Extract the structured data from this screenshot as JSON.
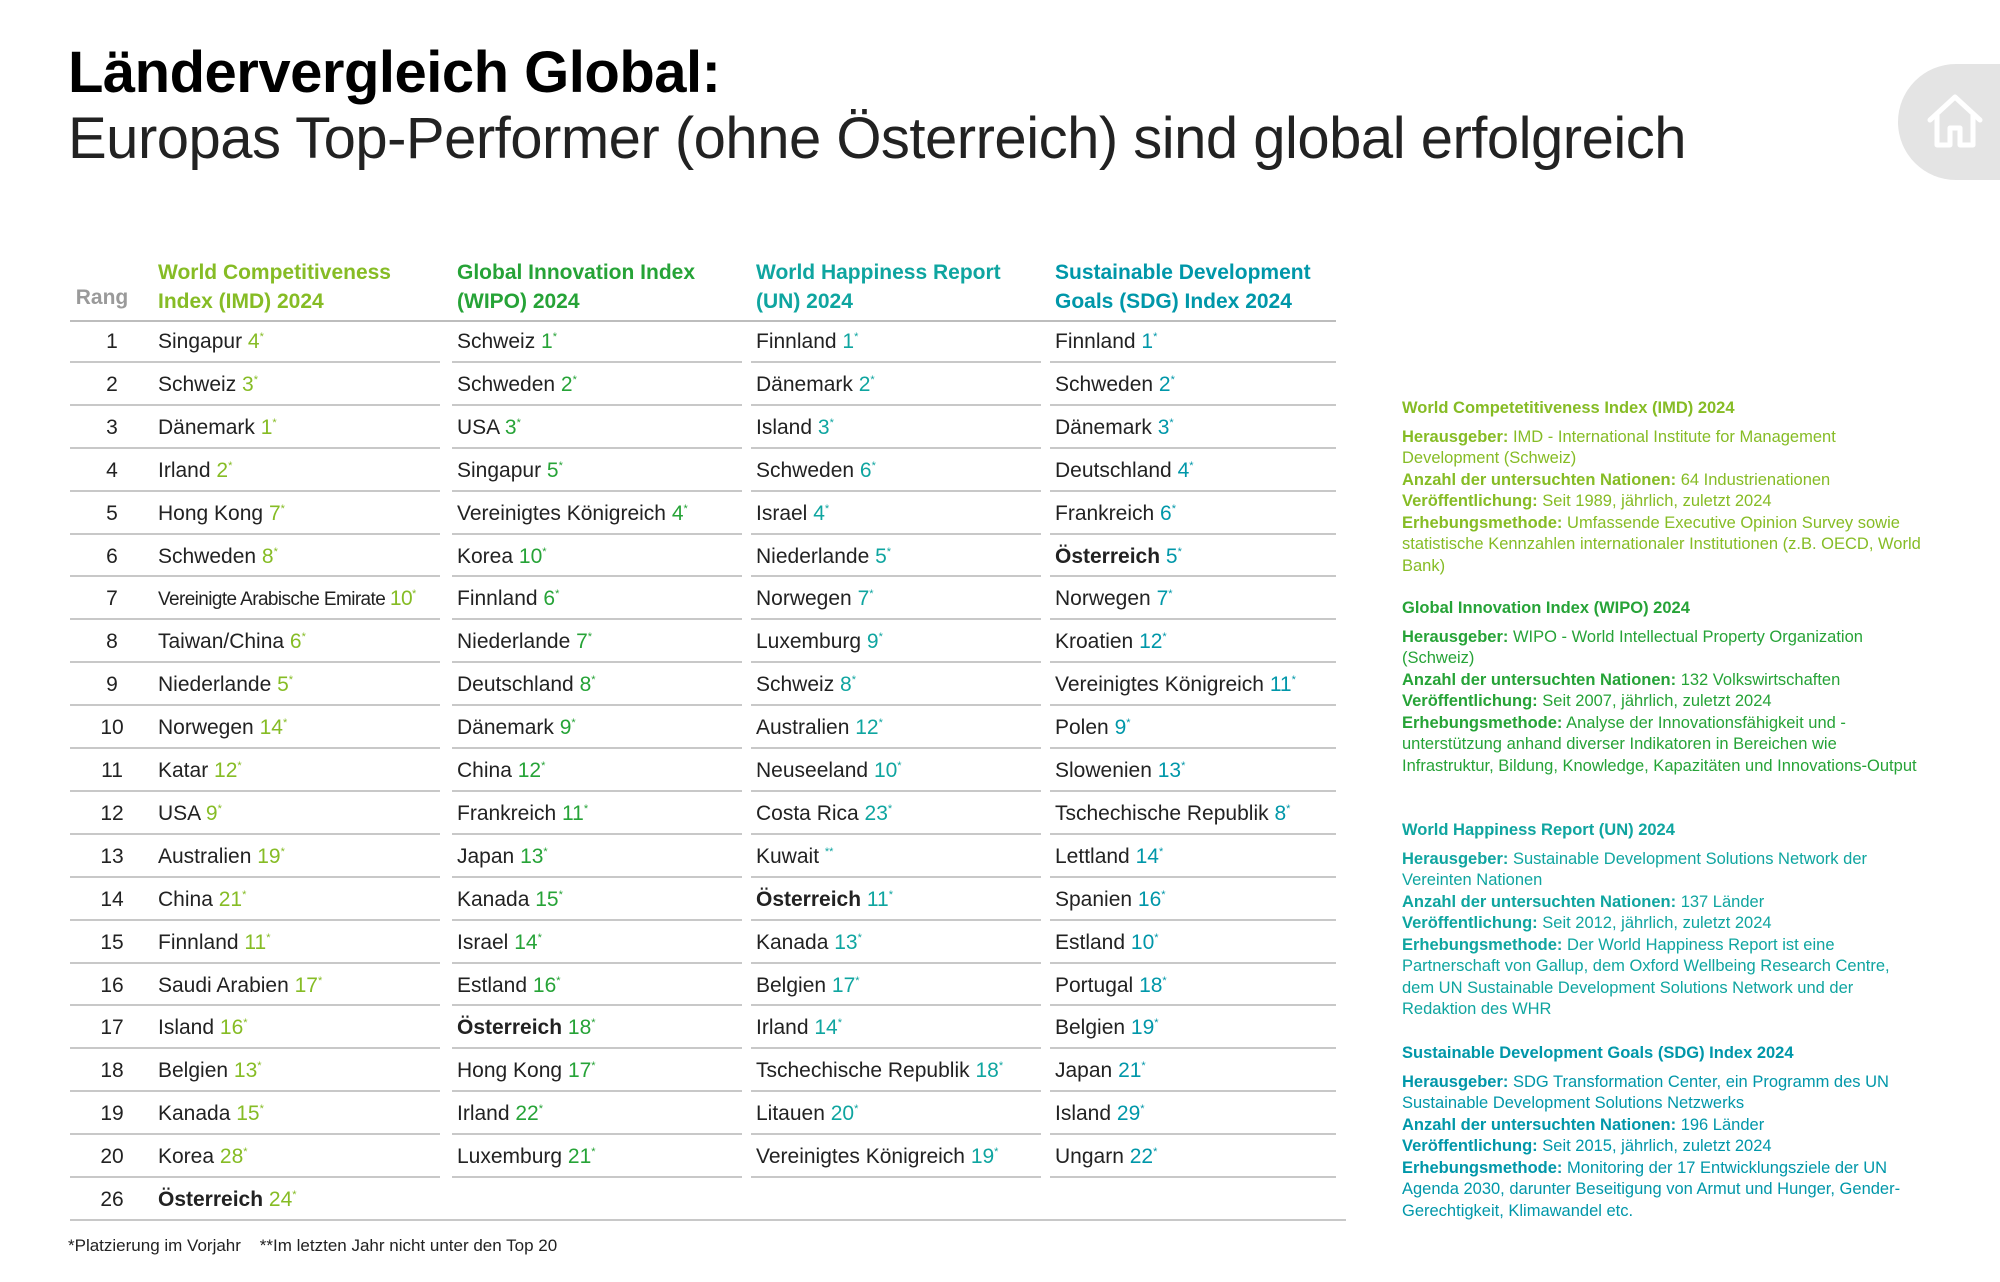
{
  "title": "Ländervergleich Global:",
  "subtitle": "Europas Top-Performer (ohne Österreich) sind global erfolgreich",
  "home_icon": "home-icon",
  "colors": {
    "imd": "#86bc25",
    "wipo": "#26a337",
    "whr": "#0fa5a0",
    "sdg": "#0097a9"
  },
  "table": {
    "rank_header": "Rang",
    "ranks": [
      "1",
      "2",
      "3",
      "4",
      "5",
      "6",
      "7",
      "8",
      "9",
      "10",
      "11",
      "12",
      "13",
      "14",
      "15",
      "16",
      "17",
      "18",
      "19",
      "20",
      "26"
    ],
    "columns": [
      {
        "header_line1": "World Competitiveness",
        "header_line2": "Index (IMD) 2024",
        "entries": [
          {
            "country": "Singapur",
            "prev": "4"
          },
          {
            "country": "Schweiz",
            "prev": "3"
          },
          {
            "country": "Dänemark",
            "prev": "1"
          },
          {
            "country": "Irland",
            "prev": "2"
          },
          {
            "country": "Hong Kong",
            "prev": "7"
          },
          {
            "country": "Schweden",
            "prev": "8"
          },
          {
            "country": "Vereinigte Arabische Emirate",
            "prev": "10"
          },
          {
            "country": "Taiwan/China",
            "prev": "6"
          },
          {
            "country": "Niederlande",
            "prev": "5"
          },
          {
            "country": "Norwegen",
            "prev": "14"
          },
          {
            "country": "Katar",
            "prev": "12"
          },
          {
            "country": "USA",
            "prev": "9"
          },
          {
            "country": "Australien",
            "prev": "19"
          },
          {
            "country": "China",
            "prev": "21"
          },
          {
            "country": "Finnland",
            "prev": "11"
          },
          {
            "country": "Saudi Arabien",
            "prev": "17"
          },
          {
            "country": "Island",
            "prev": "16"
          },
          {
            "country": "Belgien",
            "prev": "13"
          },
          {
            "country": "Kanada",
            "prev": "15"
          },
          {
            "country": "Korea",
            "prev": "28"
          },
          {
            "country": "Österreich",
            "prev": "24"
          }
        ]
      },
      {
        "header_line1": "Global Innovation Index",
        "header_line2": "(WIPO) 2024",
        "entries": [
          {
            "country": "Schweiz",
            "prev": "1"
          },
          {
            "country": "Schweden",
            "prev": "2"
          },
          {
            "country": "USA",
            "prev": "3"
          },
          {
            "country": "Singapur",
            "prev": "5"
          },
          {
            "country": "Vereinigtes Königreich",
            "prev": "4"
          },
          {
            "country": "Korea",
            "prev": "10"
          },
          {
            "country": "Finnland",
            "prev": "6"
          },
          {
            "country": "Niederlande",
            "prev": "7"
          },
          {
            "country": "Deutschland",
            "prev": "8"
          },
          {
            "country": "Dänemark",
            "prev": "9"
          },
          {
            "country": "China",
            "prev": "12"
          },
          {
            "country": "Frankreich",
            "prev": "11"
          },
          {
            "country": "Japan",
            "prev": "13"
          },
          {
            "country": "Kanada",
            "prev": "15"
          },
          {
            "country": "Israel",
            "prev": "14"
          },
          {
            "country": "Estland",
            "prev": "16"
          },
          {
            "country": "Österreich",
            "prev": "18"
          },
          {
            "country": "Hong Kong",
            "prev": "17"
          },
          {
            "country": "Irland",
            "prev": "22"
          },
          {
            "country": "Luxemburg",
            "prev": "21"
          }
        ]
      },
      {
        "header_line1": "World Happiness Report",
        "header_line2": "(UN) 2024",
        "entries": [
          {
            "country": "Finnland",
            "prev": "1"
          },
          {
            "country": "Dänemark",
            "prev": "2"
          },
          {
            "country": "Island",
            "prev": "3"
          },
          {
            "country": "Schweden",
            "prev": "6"
          },
          {
            "country": "Israel",
            "prev": "4"
          },
          {
            "country": "Niederlande",
            "prev": "5"
          },
          {
            "country": "Norwegen",
            "prev": "7"
          },
          {
            "country": "Luxemburg",
            "prev": "9"
          },
          {
            "country": "Schweiz",
            "prev": "8"
          },
          {
            "country": "Australien",
            "prev": "12"
          },
          {
            "country": "Neuseeland",
            "prev": "10"
          },
          {
            "country": "Costa Rica",
            "prev": "23"
          },
          {
            "country": "Kuwait",
            "prev": ""
          },
          {
            "country": "Österreich",
            "prev": "11"
          },
          {
            "country": "Kanada",
            "prev": "13"
          },
          {
            "country": "Belgien",
            "prev": "17"
          },
          {
            "country": "Irland",
            "prev": "14"
          },
          {
            "country": "Tschechische Republik",
            "prev": "18"
          },
          {
            "country": "Litauen",
            "prev": "20"
          },
          {
            "country": "Vereinigtes Königreich",
            "prev": "19"
          }
        ]
      },
      {
        "header_line1": "Sustainable Development",
        "header_line2": "Goals (SDG) Index 2024",
        "entries": [
          {
            "country": "Finnland",
            "prev": "1"
          },
          {
            "country": "Schweden",
            "prev": "2"
          },
          {
            "country": "Dänemark",
            "prev": "3"
          },
          {
            "country": "Deutschland",
            "prev": "4"
          },
          {
            "country": "Frankreich",
            "prev": "6"
          },
          {
            "country": "Österreich",
            "prev": "5"
          },
          {
            "country": "Norwegen",
            "prev": "7"
          },
          {
            "country": "Kroatien",
            "prev": "12"
          },
          {
            "country": "Vereinigtes Königreich",
            "prev": "11"
          },
          {
            "country": "Polen",
            "prev": "9"
          },
          {
            "country": "Slowenien",
            "prev": "13"
          },
          {
            "country": "Tschechische Republik",
            "prev": "8"
          },
          {
            "country": "Lettland",
            "prev": "14"
          },
          {
            "country": "Spanien",
            "prev": "16"
          },
          {
            "country": "Estland",
            "prev": "10"
          },
          {
            "country": "Portugal",
            "prev": "18"
          },
          {
            "country": "Belgien",
            "prev": "19"
          },
          {
            "country": "Japan",
            "prev": "21"
          },
          {
            "country": "Island",
            "prev": "29"
          },
          {
            "country": "Ungarn",
            "prev": "22"
          }
        ]
      }
    ]
  },
  "footer": "*Platzierung im Vorjahr    **Im letzten Jahr nicht unter den Top 20",
  "sidebar": [
    {
      "title": "World Competetitiveness Index (IMD) 2024",
      "rows": [
        {
          "label": "Herausgeber:",
          "value": " IMD - International Institute for Management Development (Schweiz)"
        },
        {
          "label": "Anzahl der untersuchten Nationen:",
          "value": " 64 Industrienationen"
        },
        {
          "label": "Veröffentlichung:",
          "value": " Seit 1989, jährlich, zuletzt 2024"
        },
        {
          "label": "Erhebungsmethode:",
          "value": " Umfassende Executive Opinion Survey sowie statistische Kennzahlen internationaler Institutionen (z.B. OECD, World Bank)"
        }
      ]
    },
    {
      "title": "Global Innovation Index (WIPO) 2024",
      "rows": [
        {
          "label": "Herausgeber:",
          "value": " WIPO - World Intellectual Property Organization (Schweiz)"
        },
        {
          "label": "Anzahl der untersuchten Nationen:",
          "value": " 132 Volkswirtschaften"
        },
        {
          "label": "Veröffentlichung:",
          "value": " Seit 2007, jährlich, zuletzt 2024"
        },
        {
          "label": "Erhebungsmethode:",
          "value": " Analyse der Innovationsfähigkeit und -unterstützung anhand diverser Indikatoren in Bereichen wie Infrastruktur, Bildung, Knowledge, Kapazitäten und Innovations-Output"
        }
      ]
    },
    {
      "title": "World Happiness Report (UN) 2024",
      "rows": [
        {
          "label": "Herausgeber:",
          "value": " Sustainable Development Solutions Network der Vereinten Nationen"
        },
        {
          "label": "Anzahl der untersuchten Nationen:",
          "value": " 137 Länder"
        },
        {
          "label": "Veröffentlichung:",
          "value": " Seit 2012, jährlich, zuletzt 2024"
        },
        {
          "label": "Erhebungsmethode:",
          "value": " Der World Happiness Report ist eine Partnerschaft von Gallup, dem Oxford Wellbeing Research Centre, dem UN Sustainable Development Solutions Network und der Redaktion des WHR"
        }
      ]
    },
    {
      "title": "Sustainable Development Goals (SDG) Index 2024",
      "rows": [
        {
          "label": "Herausgeber:",
          "value": " SDG Transformation Center, ein Programm des UN Sustainable Development Solutions Netzwerks"
        },
        {
          "label": "Anzahl der untersuchten Nationen:",
          "value": " 196 Länder"
        },
        {
          "label": "Veröffentlichung:",
          "value": " Seit 2015, jährlich, zuletzt 2024"
        },
        {
          "label": "Erhebungsmethode:",
          "value": " Monitoring der 17 Entwicklungsziele der UN Agenda 2030, darunter Beseitigung von Armut und Hunger, Gender-Gerechtigkeit, Klimawandel etc."
        }
      ]
    }
  ]
}
